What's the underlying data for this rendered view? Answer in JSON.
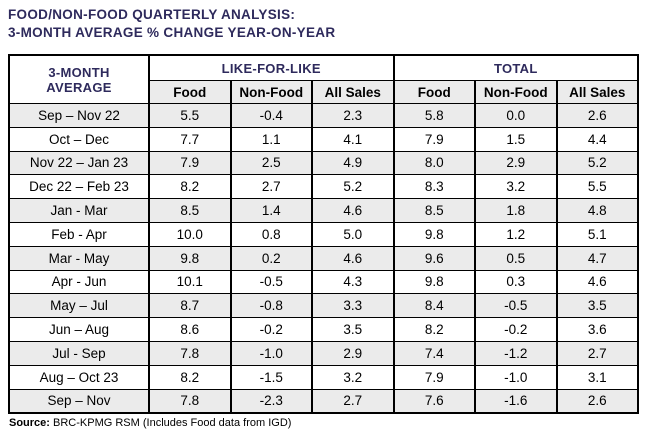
{
  "title": {
    "line1": "FOOD/NON-FOOD QUARTERLY ANALYSIS:",
    "line2": "3-MONTH AVERAGE % CHANGE YEAR-ON-YEAR"
  },
  "colors": {
    "accent_navy": "#2e2a5c",
    "row_shade": "#ebebeb",
    "border": "#000000"
  },
  "chart_data": {
    "type": "table",
    "title": "FOOD/NON-FOOD QUARTERLY ANALYSIS: 3-MONTH AVERAGE % CHANGE YEAR-ON-YEAR",
    "corner_header": "3-MONTH AVERAGE",
    "column_groups": [
      {
        "label": "LIKE-FOR-LIKE",
        "columns": [
          "Food",
          "Non-Food",
          "All Sales"
        ]
      },
      {
        "label": "TOTAL",
        "columns": [
          "Food",
          "Non-Food",
          "All Sales"
        ]
      }
    ],
    "rows": [
      {
        "period": "Sep – Nov 22",
        "values": [
          "5.5",
          "-0.4",
          "2.3",
          "5.8",
          "0.0",
          "2.6"
        ]
      },
      {
        "period": "Oct – Dec",
        "values": [
          "7.7",
          "1.1",
          "4.1",
          "7.9",
          "1.5",
          "4.4"
        ]
      },
      {
        "period": "Nov 22 – Jan 23",
        "values": [
          "7.9",
          "2.5",
          "4.9",
          "8.0",
          "2.9",
          "5.2"
        ]
      },
      {
        "period": "Dec 22 – Feb 23",
        "values": [
          "8.2",
          "2.7",
          "5.2",
          "8.3",
          "3.2",
          "5.5"
        ]
      },
      {
        "period": "Jan - Mar",
        "values": [
          "8.5",
          "1.4",
          "4.6",
          "8.5",
          "1.8",
          "4.8"
        ]
      },
      {
        "period": "Feb - Apr",
        "values": [
          "10.0",
          "0.8",
          "5.0",
          "9.8",
          "1.2",
          "5.1"
        ]
      },
      {
        "period": "Mar - May",
        "values": [
          "9.8",
          "0.2",
          "4.6",
          "9.6",
          "0.5",
          "4.7"
        ]
      },
      {
        "period": "Apr - Jun",
        "values": [
          "10.1",
          "-0.5",
          "4.3",
          "9.8",
          "0.3",
          "4.6"
        ]
      },
      {
        "period": "May – Jul",
        "values": [
          "8.7",
          "-0.8",
          "3.3",
          "8.4",
          "-0.5",
          "3.5"
        ]
      },
      {
        "period": "Jun – Aug",
        "values": [
          "8.6",
          "-0.2",
          "3.5",
          "8.2",
          "-0.2",
          "3.6"
        ]
      },
      {
        "period": "Jul - Sep",
        "values": [
          "7.8",
          "-1.0",
          "2.9",
          "7.4",
          "-1.2",
          "2.7"
        ]
      },
      {
        "period": "Aug – Oct 23",
        "values": [
          "8.2",
          "-1.5",
          "3.2",
          "7.9",
          "-1.0",
          "3.1"
        ]
      },
      {
        "period": "Sep – Nov",
        "values": [
          "7.8",
          "-2.3",
          "2.7",
          "7.6",
          "-1.6",
          "2.6"
        ]
      }
    ],
    "source_label": "Source:",
    "source_text": "BRC-KPMG RSM (Includes Food data from IGD)"
  }
}
